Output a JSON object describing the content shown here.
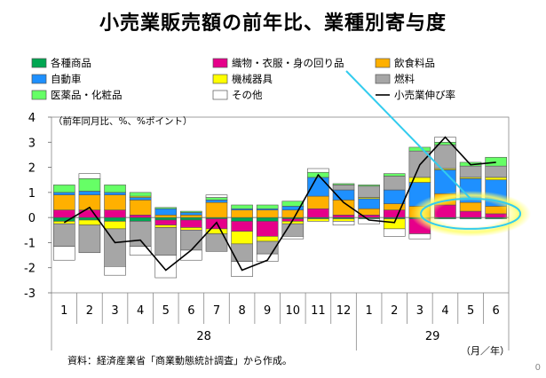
{
  "title": "小売業販売額の前年比、業種別寄与度",
  "unit_note": "（前年同月比、%、%ポイント）",
  "source": "資料：経済産業省「商業動態統計調査」から作成。",
  "axis_unit": "（月／年）",
  "page_number": "0",
  "legend": [
    {
      "label": "各種商品",
      "color": "#00a651"
    },
    {
      "label": "織物・衣服・身の回り品",
      "color": "#e6008a"
    },
    {
      "label": "飲食料品",
      "color": "#ffb000"
    },
    {
      "label": "自動車",
      "color": "#1e90ff"
    },
    {
      "label": "機械器具",
      "color": "#ffff00"
    },
    {
      "label": "燃料",
      "color": "#a6a6a6"
    },
    {
      "label": "医薬品・化粧品",
      "color": "#66ff66"
    },
    {
      "label": "その他",
      "color": "#ffffff"
    },
    {
      "label": "小売業伸び率",
      "color": "#000000"
    }
  ],
  "chart_data": {
    "type": "bar",
    "stacked": true,
    "categories": [
      "1",
      "2",
      "3",
      "4",
      "5",
      "6",
      "7",
      "8",
      "9",
      "10",
      "11",
      "12",
      "1",
      "2",
      "3",
      "4",
      "5",
      "6"
    ],
    "year_groups": [
      {
        "label": "28",
        "start": 0,
        "end": 11
      },
      {
        "label": "29",
        "start": 12,
        "end": 17
      }
    ],
    "ylim": [
      -3,
      4
    ],
    "yticks": [
      4,
      3,
      2,
      1,
      0,
      -1,
      -2,
      -3
    ],
    "series": [
      {
        "name": "各種商品",
        "color": "#00a651",
        "values": [
          -0.15,
          -0.1,
          -0.15,
          -0.15,
          -0.1,
          -0.1,
          -0.05,
          -0.15,
          -0.15,
          -0.05,
          -0.05,
          -0.05,
          -0.05,
          -0.05,
          -0.05,
          -0.05,
          -0.05,
          -0.05
        ]
      },
      {
        "name": "織物・衣服・身の回り品",
        "color": "#e6008a",
        "values": [
          0.3,
          0.3,
          0.3,
          0.1,
          -0.2,
          -0.3,
          -0.4,
          -0.4,
          -0.6,
          -0.1,
          0.35,
          0.1,
          0.1,
          0.3,
          -0.6,
          0.5,
          0.25,
          0.15
        ]
      },
      {
        "name": "飲食料品",
        "color": "#ffb000",
        "values": [
          0.6,
          0.6,
          0.6,
          0.6,
          0.1,
          0.1,
          0.6,
          0.3,
          0.3,
          0.3,
          0.5,
          0.6,
          0.25,
          0.25,
          0.45,
          0.45,
          0.35,
          0.3
        ]
      },
      {
        "name": "自動車",
        "color": "#1e90ff",
        "values": [
          0.1,
          0.15,
          0.1,
          0.1,
          0.25,
          0.1,
          0.1,
          0.05,
          0.05,
          0.15,
          0.75,
          0.4,
          0.4,
          0.55,
          0.95,
          0.95,
          0.95,
          1.05
        ]
      },
      {
        "name": "機械器具",
        "color": "#ffff00",
        "values": [
          -0.1,
          -0.2,
          -0.3,
          0.05,
          -0.1,
          -0.1,
          -0.2,
          -0.5,
          -0.2,
          -0.1,
          -0.1,
          -0.1,
          0.05,
          -0.4,
          0.2,
          0.05,
          0.05,
          0.1
        ]
      },
      {
        "name": "燃料",
        "color": "#a6a6a6",
        "values": [
          -0.9,
          -1.1,
          -1.5,
          -1.0,
          -1.1,
          -0.8,
          -0.7,
          -0.7,
          -0.5,
          -0.5,
          0.0,
          0.2,
          0.45,
          0.55,
          1.05,
          0.95,
          0.45,
          0.45
        ]
      },
      {
        "name": "医薬品・化粧品",
        "color": "#66ff66",
        "values": [
          0.3,
          0.5,
          0.3,
          0.15,
          0.05,
          0.05,
          0.1,
          0.15,
          0.15,
          0.2,
          0.2,
          0.05,
          0.05,
          0.1,
          0.15,
          0.1,
          0.15,
          0.35
        ]
      },
      {
        "name": "その他",
        "color": "#ffffff",
        "values": [
          -0.55,
          0.2,
          -0.35,
          -0.35,
          -0.9,
          -0.4,
          0.1,
          -0.6,
          -0.3,
          -0.1,
          0.15,
          -0.15,
          -0.2,
          -0.3,
          -0.2,
          0.2,
          0.0,
          0.0
        ]
      }
    ],
    "line": {
      "name": "小売業伸び率",
      "values": [
        -0.2,
        0.4,
        -1.0,
        -0.9,
        -2.1,
        -1.3,
        -0.2,
        -2.1,
        -1.7,
        -0.1,
        1.7,
        0.6,
        -0.1,
        -0.2,
        2.1,
        3.2,
        2.1,
        2.2
      ]
    }
  }
}
